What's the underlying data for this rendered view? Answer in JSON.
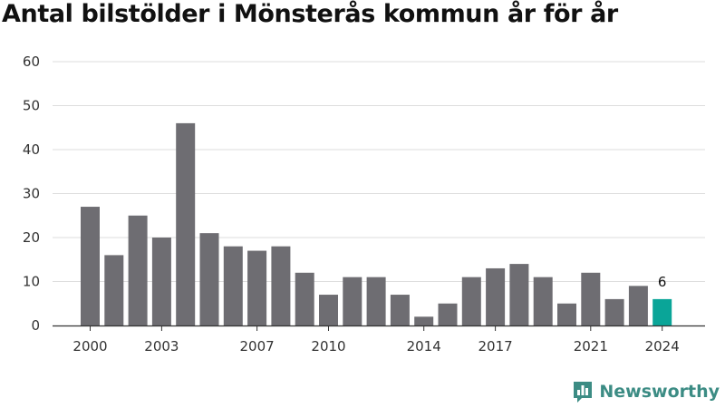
{
  "chart_data": {
    "type": "bar",
    "title": "Antal bilstölder i Mönsterås kommun år för år",
    "xlabel": "",
    "ylabel": "",
    "ylim": [
      0,
      60
    ],
    "yticks": [
      0,
      10,
      20,
      30,
      40,
      50,
      60
    ],
    "grid": true,
    "categories": [
      "2000",
      "2001",
      "2002",
      "2003",
      "2004",
      "2005",
      "2006",
      "2007",
      "2008",
      "2009",
      "2010",
      "2011",
      "2012",
      "2013",
      "2014",
      "2015",
      "2016",
      "2017",
      "2018",
      "2019",
      "2020",
      "2021",
      "2022",
      "2023",
      "2024"
    ],
    "xtick_labels": [
      "2000",
      "2003",
      "2007",
      "2010",
      "2014",
      "2017",
      "2021",
      "2024"
    ],
    "values": [
      27,
      16,
      25,
      20,
      46,
      21,
      18,
      17,
      18,
      12,
      7,
      11,
      11,
      7,
      2,
      5,
      11,
      13,
      14,
      11,
      5,
      12,
      6,
      9,
      6
    ],
    "highlight": {
      "category": "2024",
      "label": "6"
    },
    "colors": {
      "bar": "#6e6d72",
      "highlight": "#0aa598",
      "grid": "#dddddd",
      "axis": "#333333"
    }
  },
  "brand": {
    "name": "Newsworthy",
    "icon": "newsworthy-chart-icon",
    "color": "#3c8c84"
  }
}
